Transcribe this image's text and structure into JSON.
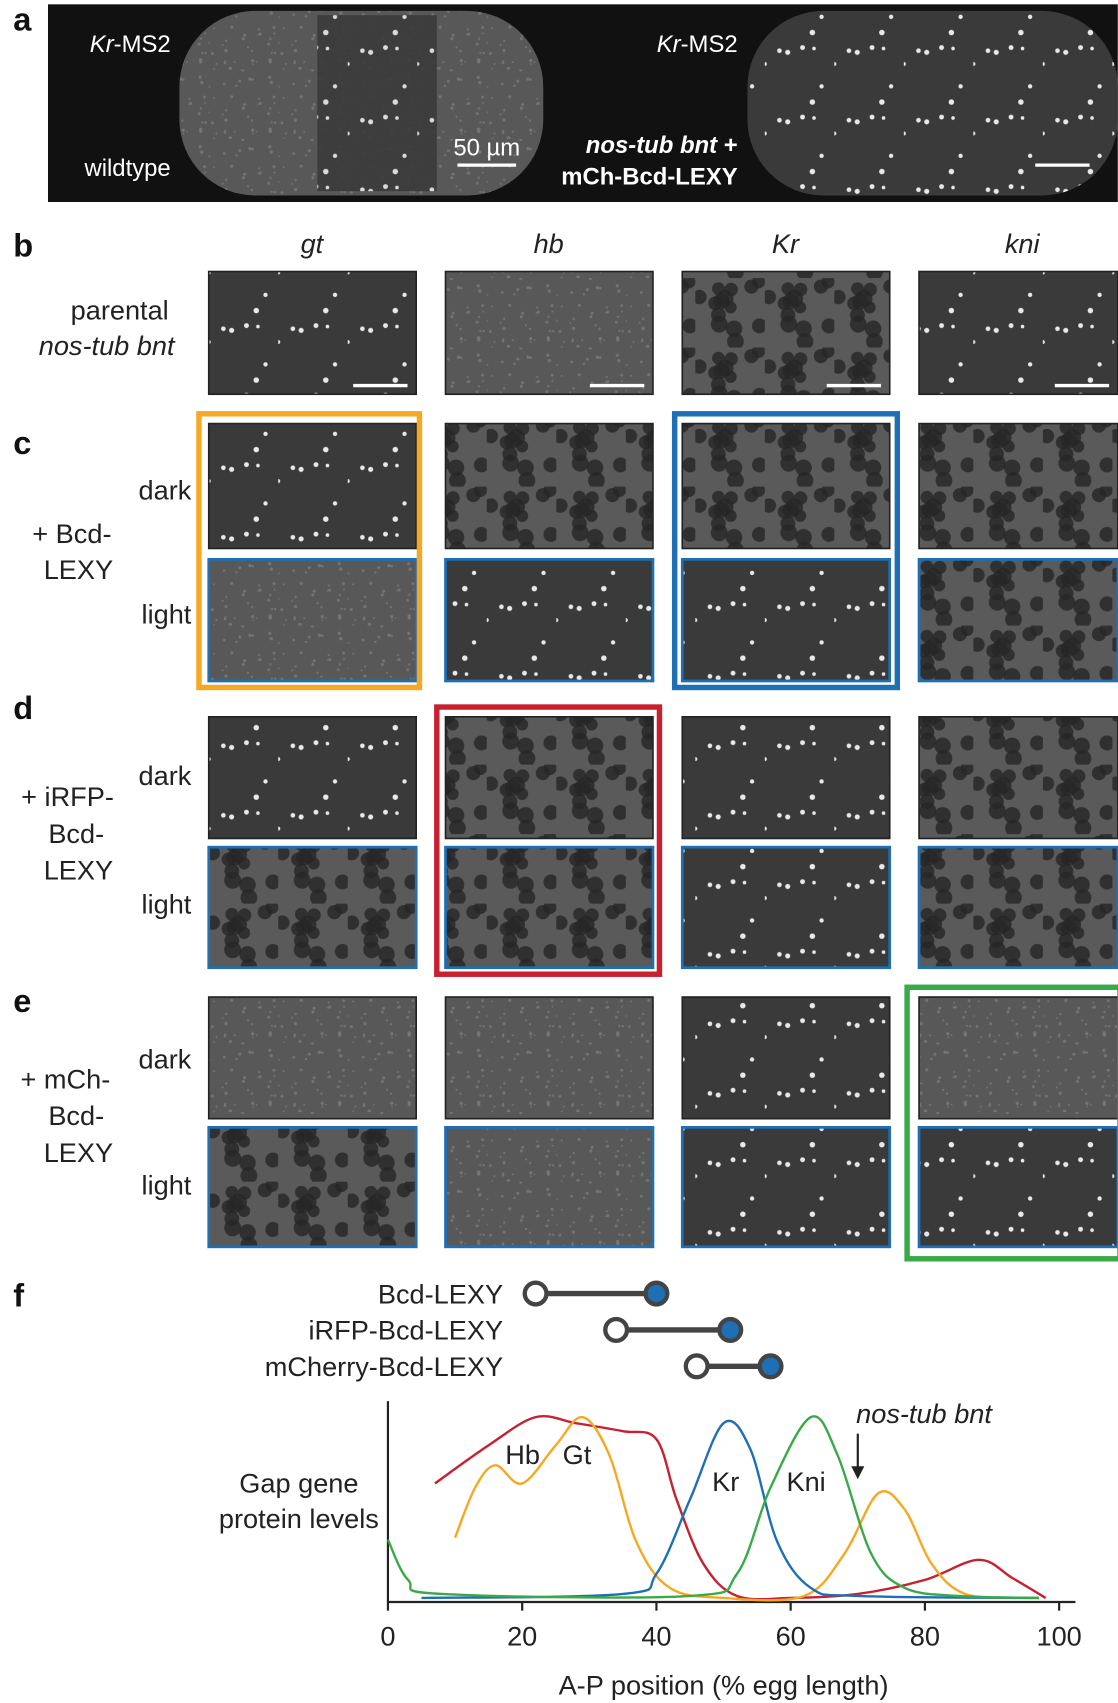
{
  "panel_a": {
    "letter": "a",
    "left": {
      "gene": "Kr",
      "label": "-MS2",
      "genotype": "wildtype",
      "scale": "50 µm"
    },
    "right": {
      "gene": "Kr",
      "label": "-MS2",
      "genotype": "nos-tub bnt",
      "plus": " +",
      "construct": "mCh-Bcd-LEXY"
    }
  },
  "genes": [
    "gt",
    "hb",
    "Kr",
    "kni"
  ],
  "conditions": [
    "dark",
    "light"
  ],
  "rows": [
    {
      "letter": "b",
      "lines": [
        "parental",
        "nos-tub bnt"
      ]
    },
    {
      "letter": "c",
      "lines": [
        "+ Bcd-",
        "LEXY"
      ]
    },
    {
      "letter": "d",
      "lines": [
        "+ iRFP-",
        "Bcd-",
        "LEXY"
      ]
    },
    {
      "letter": "e",
      "lines": [
        "+ mCh-",
        "Bcd-",
        "LEXY"
      ]
    }
  ],
  "panel_f_letter": "f",
  "chart_data": [
    {
      "type": "dumbbell",
      "categories": [
        "Bcd-LEXY",
        "iRFP-Bcd-LEXY",
        "mCherry-Bcd-LEXY"
      ],
      "dark": [
        22,
        34,
        46
      ],
      "light": [
        40,
        51,
        57
      ],
      "xlim": [
        0,
        100
      ],
      "dark_color": "#ffffff",
      "light_color": "#1f6fb5"
    },
    {
      "type": "line",
      "ylabel": [
        "Gap gene",
        "protein levels"
      ],
      "xlabel": "A-P position (% egg length)",
      "xlim": [
        0,
        100
      ],
      "ylim": [
        0,
        1
      ],
      "xticks": [
        0,
        20,
        40,
        60,
        80,
        100
      ],
      "series": [
        {
          "name": "Hb",
          "color": "#c8202f",
          "x": [
            7,
            15,
            22,
            28,
            35,
            40,
            43,
            47,
            52,
            60,
            70,
            80,
            88,
            93,
            98
          ],
          "values": [
            0.59,
            0.78,
            0.92,
            0.89,
            0.85,
            0.81,
            0.51,
            0.19,
            0.03,
            0.02,
            0.04,
            0.11,
            0.21,
            0.12,
            0.02
          ]
        },
        {
          "name": "Gt",
          "color": "#f7a823",
          "x": [
            10,
            13,
            16,
            20,
            25,
            29,
            33,
            37,
            42,
            50,
            62,
            68,
            73,
            77,
            81,
            86,
            95
          ],
          "values": [
            0.32,
            0.57,
            0.68,
            0.59,
            0.78,
            0.92,
            0.73,
            0.3,
            0.07,
            0.02,
            0.03,
            0.24,
            0.54,
            0.46,
            0.19,
            0.04,
            0.02
          ]
        },
        {
          "name": "Kr",
          "color": "#1f6fb5",
          "x": [
            5,
            35,
            40,
            45,
            50,
            54,
            58,
            63,
            70,
            97
          ],
          "values": [
            0.02,
            0.04,
            0.14,
            0.51,
            0.89,
            0.76,
            0.3,
            0.07,
            0.03,
            0.02
          ]
        },
        {
          "name": "Kni",
          "color": "#3aaa48",
          "x": [
            0,
            3,
            8,
            45,
            52,
            57,
            63,
            67,
            72,
            77,
            85,
            97
          ],
          "values": [
            0.31,
            0.11,
            0.04,
            0.03,
            0.14,
            0.57,
            0.92,
            0.73,
            0.24,
            0.07,
            0.03,
            0.02
          ]
        }
      ],
      "annotations": [
        {
          "text": "nos-tub bnt",
          "x": 70
        }
      ]
    }
  ]
}
